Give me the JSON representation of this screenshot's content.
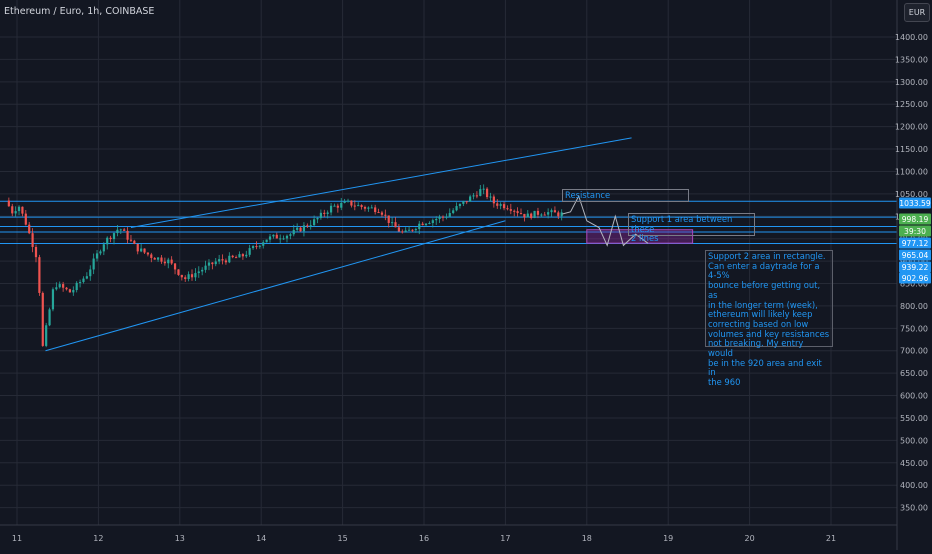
{
  "header": {
    "title": "Ethereum / Euro, 1h, COINBASE",
    "currency": "EUR"
  },
  "chart_data": {
    "type": "candlestick",
    "title": "Ethereum / Euro, 1h, COINBASE",
    "currency": "EUR",
    "y_range": [
      310,
      1480
    ],
    "x_tick_labels": [
      "11",
      "12",
      "13",
      "14",
      "15",
      "16",
      "17",
      "18",
      "19",
      "20",
      "21"
    ],
    "y_tick_labels": [
      "350.00",
      "400.00",
      "450.00",
      "500.00",
      "550.00",
      "600.00",
      "650.00",
      "700.00",
      "750.00",
      "800.00",
      "850.00",
      "900.00",
      "950.00",
      "1000.00",
      "1050.00",
      "1100.00",
      "1150.00",
      "1200.00",
      "1250.00",
      "1300.00",
      "1350.00",
      "1400.00"
    ],
    "price_badges": [
      {
        "value": "1033.59",
        "color": "#2196f3"
      },
      {
        "value": "998.19",
        "color": "#4caf50"
      },
      {
        "value": "39:30",
        "color": "#4caf50"
      },
      {
        "value": "977.12",
        "color": "#2196f3"
      },
      {
        "value": "965.04",
        "color": "#2196f3"
      },
      {
        "value": "939.22",
        "color": "#2196f3"
      },
      {
        "value": "902.96",
        "color": "#2196f3"
      }
    ],
    "horizontal_levels": [
      1033.59,
      998.19,
      977.12,
      965.04,
      939.22
    ],
    "price_path": [
      [
        10.9,
        1035
      ],
      [
        11.0,
        1005
      ],
      [
        11.05,
        1030
      ],
      [
        11.15,
        985
      ],
      [
        11.3,
        900
      ],
      [
        11.35,
        700
      ],
      [
        11.5,
        850
      ],
      [
        11.7,
        830
      ],
      [
        11.9,
        870
      ],
      [
        12.1,
        940
      ],
      [
        12.3,
        975
      ],
      [
        12.5,
        930
      ],
      [
        12.7,
        910
      ],
      [
        12.9,
        900
      ],
      [
        13.1,
        860
      ],
      [
        13.3,
        880
      ],
      [
        13.5,
        900
      ],
      [
        13.8,
        910
      ],
      [
        14.1,
        950
      ],
      [
        14.4,
        960
      ],
      [
        14.7,
        990
      ],
      [
        14.9,
        1020
      ],
      [
        15.1,
        1030
      ],
      [
        15.3,
        1020
      ],
      [
        15.5,
        1015
      ],
      [
        15.65,
        980
      ],
      [
        15.8,
        960
      ],
      [
        16.0,
        985
      ],
      [
        16.3,
        1000
      ],
      [
        16.6,
        1040
      ],
      [
        16.75,
        1060
      ],
      [
        16.9,
        1030
      ],
      [
        17.1,
        1020
      ],
      [
        17.3,
        1000
      ],
      [
        17.5,
        1010
      ],
      [
        17.7,
        1005
      ]
    ],
    "projection_path": [
      [
        17.7,
        1005
      ],
      [
        17.8,
        1010
      ],
      [
        17.9,
        1045
      ],
      [
        18.0,
        990
      ],
      [
        18.15,
        975
      ],
      [
        18.25,
        935
      ],
      [
        18.35,
        1000
      ],
      [
        18.45,
        935
      ],
      [
        18.6,
        960
      ],
      [
        18.75,
        940
      ]
    ],
    "trendlines": [
      {
        "from": [
          11.35,
          700
        ],
        "to": [
          17.0,
          990
        ]
      },
      {
        "from": [
          12.4,
          975
        ],
        "to": [
          18.55,
          1175
        ]
      }
    ],
    "support_rectangle": {
      "x": [
        18.0,
        19.3
      ],
      "y": [
        940,
        970
      ]
    },
    "annotations": [
      {
        "id": "resistance",
        "text": "Resistance"
      },
      {
        "id": "support1",
        "text": "Support 1 area between these\n2 lines"
      },
      {
        "id": "support2",
        "text": "Support 2 area in rectangle.\nCan enter a daytrade for a 4-5%\nbounce before getting out, as\nin the longer term (week),\nethereum will likely keep\ncorrecting based on low\nvolumes and key resistances\nnot breaking. My entry would\nbe in the 920 area and exit in\nthe 960"
      }
    ],
    "colors": {
      "up": "#26a69a",
      "down": "#ef5350",
      "line": "#2196f3",
      "grid": "#262a36",
      "background": "#131722"
    },
    "grid": true
  }
}
